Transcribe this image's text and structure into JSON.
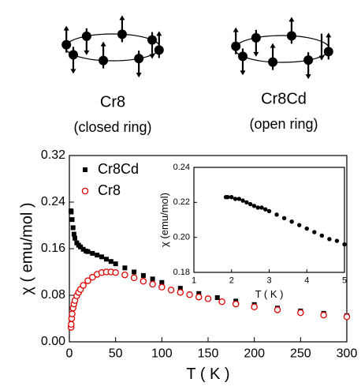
{
  "rings": [
    {
      "name": "Cr8",
      "note": "(closed ring)"
    },
    {
      "name": "Cr8Cd",
      "note": "(open ring)"
    }
  ],
  "chart_data": [
    {
      "type": "scatter",
      "xlabel": "T ( K )",
      "ylabel": "χ ( emu/mol )",
      "xlim": [
        0,
        300
      ],
      "xticks": [
        0,
        50,
        100,
        150,
        200,
        250,
        300
      ],
      "ylim": [
        0,
        0.32
      ],
      "yticks": [
        {
          "value": 0,
          "label": "0.00"
        },
        0.08,
        0.16,
        0.24,
        0.32
      ],
      "legend": "upper left",
      "series": [
        {
          "name": "Cr8Cd",
          "marker": "square",
          "color": "#000000",
          "x": [
            1.8,
            2,
            3,
            4,
            5,
            6,
            8,
            10,
            12,
            15,
            18,
            20,
            25,
            30,
            35,
            40,
            45,
            50,
            60,
            70,
            80,
            90,
            100,
            120,
            140,
            160,
            180,
            200,
            225,
            250,
            275,
            300
          ],
          "values": [
            0.225,
            0.223,
            0.21,
            0.196,
            0.185,
            0.178,
            0.17,
            0.166,
            0.163,
            0.159,
            0.156,
            0.155,
            0.152,
            0.149,
            0.146,
            0.142,
            0.138,
            0.134,
            0.127,
            0.12,
            0.114,
            0.108,
            0.102,
            0.092,
            0.083,
            0.076,
            0.07,
            0.064,
            0.058,
            0.053,
            0.049,
            0.045
          ]
        },
        {
          "name": "Cr8",
          "marker": "circle",
          "color": "#e00000",
          "x": [
            1.8,
            2,
            2.5,
            3,
            4,
            5,
            6,
            8,
            10,
            12,
            15,
            20,
            25,
            30,
            35,
            40,
            45,
            50,
            60,
            70,
            80,
            90,
            100,
            110,
            120,
            130,
            140,
            150,
            165,
            180,
            200,
            225,
            250,
            275,
            300
          ],
          "values": [
            0.025,
            0.03,
            0.04,
            0.048,
            0.058,
            0.065,
            0.071,
            0.079,
            0.085,
            0.09,
            0.097,
            0.105,
            0.111,
            0.116,
            0.119,
            0.12,
            0.12,
            0.119,
            0.115,
            0.11,
            0.104,
            0.099,
            0.094,
            0.089,
            0.085,
            0.081,
            0.077,
            0.074,
            0.069,
            0.065,
            0.06,
            0.055,
            0.05,
            0.046,
            0.043
          ]
        }
      ]
    },
    {
      "type": "scatter",
      "xlabel": "T ( K )",
      "ylabel": "χ (emu/mol)",
      "xlim": [
        1,
        5
      ],
      "xticks": [
        1,
        2,
        3,
        4,
        5
      ],
      "ylim": [
        0.18,
        0.24
      ],
      "yticks": [
        0.18,
        {
          "value": 0.2,
          "label": "0.20"
        },
        0.22,
        0.24
      ],
      "series": [
        {
          "marker": "dot",
          "color": "#000000",
          "x": [
            1.85,
            1.9,
            2,
            2.1,
            2.2,
            2.3,
            2.4,
            2.5,
            2.6,
            2.7,
            2.8,
            2.9,
            3,
            3.2,
            3.4,
            3.6,
            3.8,
            4,
            4.2,
            4.4,
            4.6,
            4.8,
            5
          ],
          "values": [
            0.223,
            0.223,
            0.223,
            0.222,
            0.222,
            0.221,
            0.22,
            0.219,
            0.218,
            0.217,
            0.217,
            0.216,
            0.215,
            0.213,
            0.211,
            0.209,
            0.207,
            0.205,
            0.203,
            0.201,
            0.199,
            0.198,
            0.196
          ]
        }
      ]
    }
  ]
}
